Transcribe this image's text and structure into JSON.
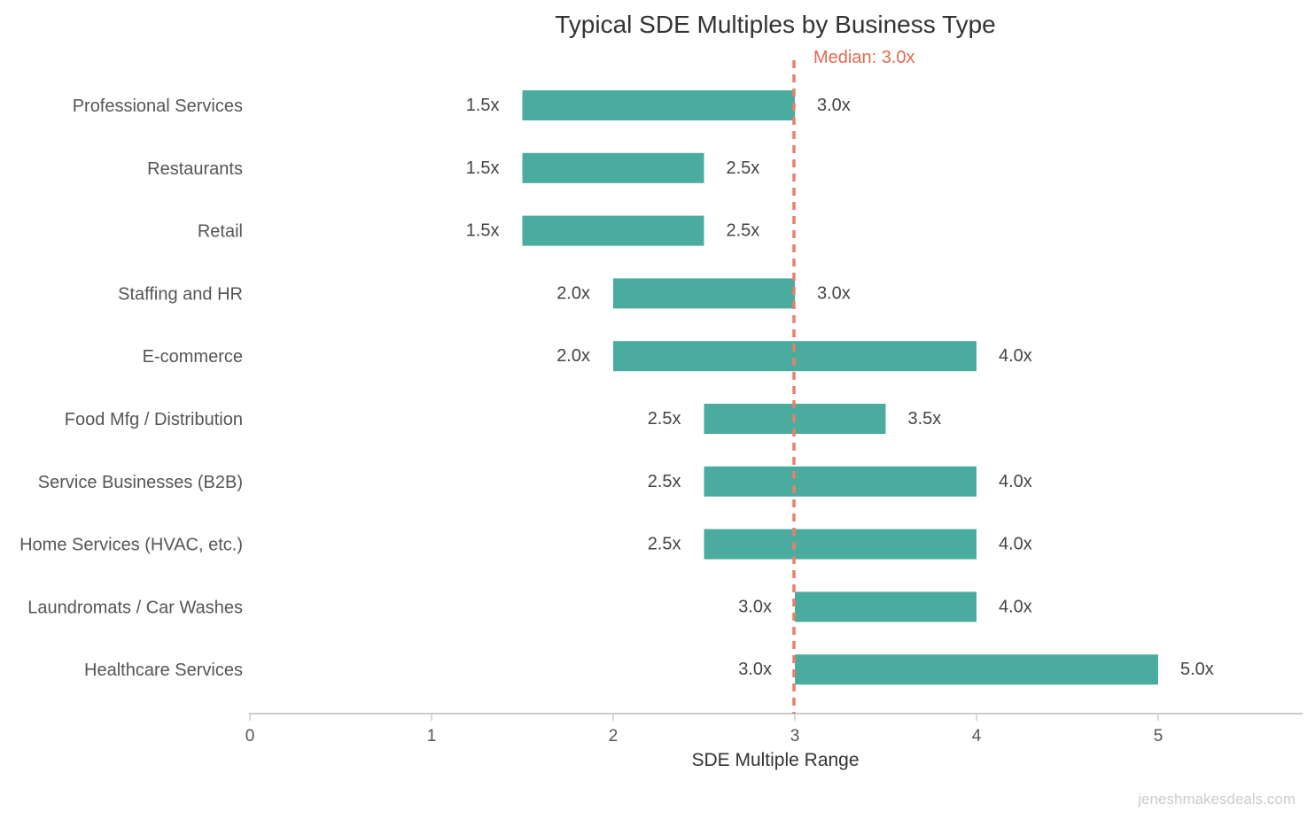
{
  "chart_data": {
    "type": "bar",
    "orientation": "horizontal",
    "subtype": "range",
    "title": "Typical SDE Multiples by Business Type",
    "xlabel": "SDE Multiple Range",
    "ylabel": "",
    "xlim": [
      0,
      5.8
    ],
    "xticks": [
      0,
      1,
      2,
      3,
      4,
      5
    ],
    "xtick_labels": [
      "0",
      "1",
      "2",
      "3",
      "4",
      "5"
    ],
    "grid": false,
    "legend": "none",
    "categories": [
      "Professional Services",
      "Restaurants",
      "Retail",
      "Staffing and HR",
      "E-commerce",
      "Food Mfg / Distribution",
      "Service Businesses (B2B)",
      "Home Services (HVAC, etc.)",
      "Laundromats / Car Washes",
      "Healthcare Services"
    ],
    "low": [
      1.5,
      1.5,
      1.5,
      2.0,
      2.0,
      2.5,
      2.5,
      2.5,
      3.0,
      3.0
    ],
    "high": [
      3.0,
      2.5,
      2.5,
      3.0,
      4.0,
      3.5,
      4.0,
      4.0,
      4.0,
      5.0
    ],
    "low_labels": [
      "1.5x",
      "1.5x",
      "1.5x",
      "2.0x",
      "2.0x",
      "2.5x",
      "2.5x",
      "2.5x",
      "3.0x",
      "3.0x"
    ],
    "high_labels": [
      "3.0x",
      "2.5x",
      "2.5x",
      "3.0x",
      "4.0x",
      "3.5x",
      "4.0x",
      "4.0x",
      "4.0x",
      "5.0x"
    ],
    "reference_line": {
      "value": 3.0,
      "label": "Median: 3.0x",
      "style": "dashed"
    },
    "colors": {
      "bar": "#4aab9f",
      "median": "#e8806a",
      "median_text": "#e06a4f",
      "axis": "#cccccc"
    }
  },
  "watermark": "jeneshmakesdeals.com"
}
